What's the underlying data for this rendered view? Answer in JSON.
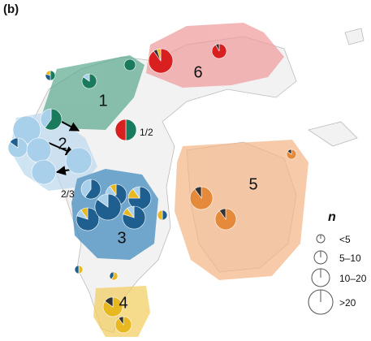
{
  "panel_label": "(b)",
  "regions": [
    {
      "label": "1"
    },
    {
      "label": "2"
    },
    {
      "label": "3"
    },
    {
      "label": "4"
    },
    {
      "label": "5"
    },
    {
      "label": "6"
    }
  ],
  "shared_labels": [
    "1/2",
    "2/3"
  ],
  "legend": {
    "title": "n",
    "sizes": [
      "<5",
      "5–10",
      "10–20",
      ">20"
    ]
  }
}
